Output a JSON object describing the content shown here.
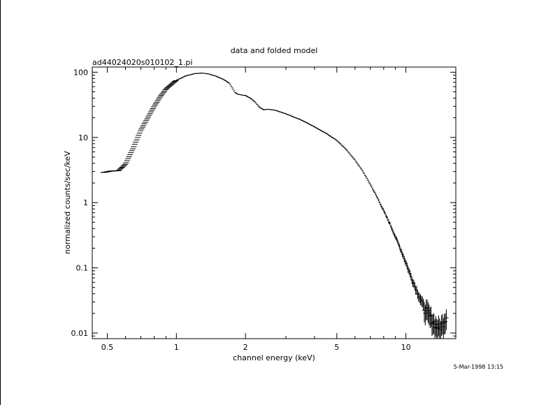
{
  "chart_data": {
    "type": "scatter",
    "title": "data and folded model",
    "subtitle": "ad44024020s010102_1.pi",
    "xlabel": "channel energy (keV)",
    "ylabel": "normalized counts/sec/keV",
    "timestamp": "5-Mar-1998 13:15",
    "x_scale": "log",
    "y_scale": "log",
    "xlim": [
      0.43,
      16.5
    ],
    "ylim": [
      0.0082,
      120
    ],
    "grid": false,
    "legend": "none",
    "color": "#000000",
    "x_ticks": [
      {
        "value": 0.5,
        "label": "0.5"
      },
      {
        "value": 1,
        "label": "1"
      },
      {
        "value": 2,
        "label": "2"
      },
      {
        "value": 5,
        "label": "5"
      },
      {
        "value": 10,
        "label": "10"
      }
    ],
    "y_ticks": [
      {
        "value": 0.01,
        "label": "0.01"
      },
      {
        "value": 0.1,
        "label": "0.1"
      },
      {
        "value": 1,
        "label": "1"
      },
      {
        "value": 10,
        "label": "10"
      },
      {
        "value": 100,
        "label": "100"
      }
    ],
    "shape_points": {
      "x": [
        0.48,
        0.52,
        0.56,
        0.6,
        0.65,
        0.7,
        0.75,
        0.8,
        0.85,
        0.9,
        0.95,
        1.0,
        1.1,
        1.2,
        1.3,
        1.4,
        1.5,
        1.6,
        1.7,
        1.75,
        1.8,
        1.85,
        1.9,
        2.0,
        2.1,
        2.2,
        2.3,
        2.4,
        2.5,
        2.7,
        3.0,
        3.5,
        4.0,
        4.5,
        5.0,
        5.5,
        6.0,
        6.5,
        7.0,
        7.5,
        8.0,
        8.5,
        9.0,
        9.5,
        10.0,
        10.5,
        11.0,
        11.5,
        12.0,
        12.5,
        13.0,
        13.5,
        14.0,
        14.5,
        15.0
      ],
      "y": [
        2.9,
        3.05,
        3.1,
        3.9,
        7.0,
        13.0,
        20.0,
        30.0,
        42.0,
        55.0,
        65.0,
        75.0,
        88.0,
        95.0,
        97.0,
        93.0,
        86.0,
        78.0,
        68.0,
        58.0,
        49.0,
        46.0,
        45.0,
        44.0,
        40.0,
        35.0,
        29.0,
        26.5,
        27.0,
        26.0,
        23.0,
        18.5,
        14.5,
        11.5,
        9.0,
        6.5,
        4.5,
        3.0,
        1.9,
        1.2,
        0.75,
        0.48,
        0.3,
        0.19,
        0.12,
        0.075,
        0.05,
        0.035,
        0.025,
        0.02,
        0.016,
        0.013,
        0.012,
        0.014,
        0.018
      ]
    }
  }
}
